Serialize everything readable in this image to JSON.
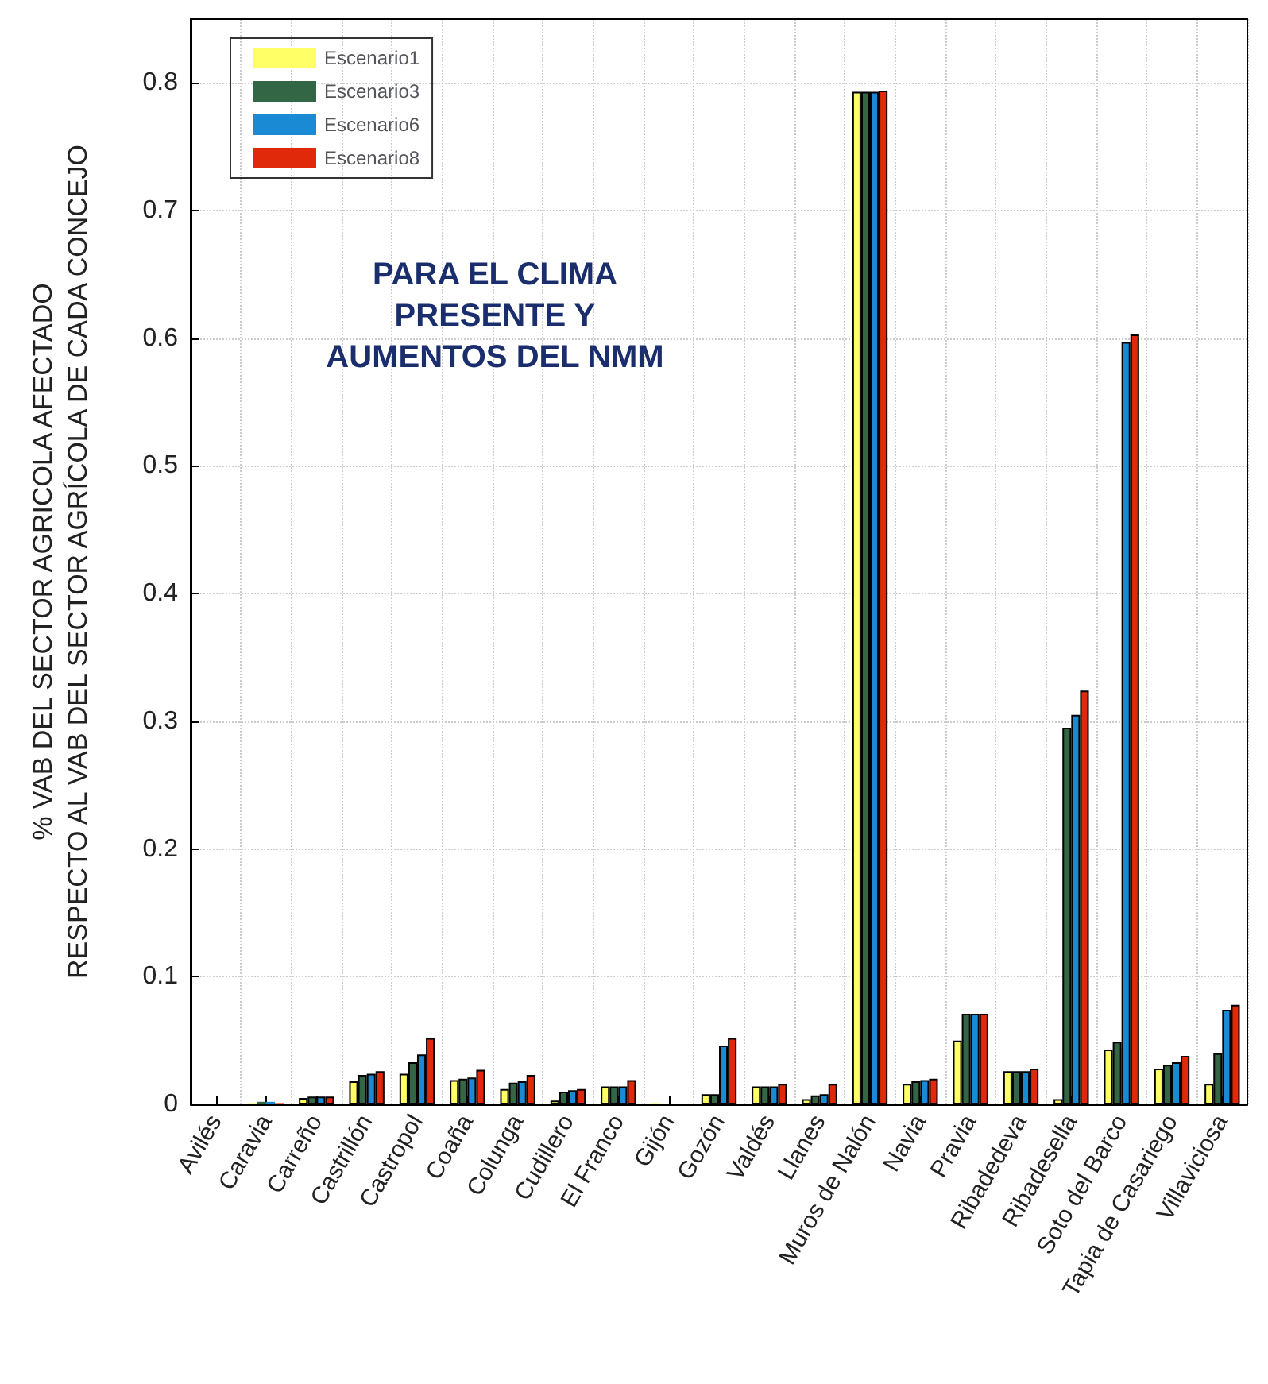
{
  "chart_data": {
    "type": "bar",
    "ylabel": "% VAB DEL SECTOR AGRICOLA AFECTADO\nRESPECTO AL VAB DEL SECTOR AGRÍCOLA DE CADA CONCEJO",
    "annotations": [
      "PARA EL CLIMA\nPRESENTE Y\nAUMENTOS DEL NMM"
    ],
    "categories": [
      "Avilés",
      "Caravia",
      "Carreño",
      "Castrillón",
      "Castropol",
      "Coaña",
      "Colunga",
      "Cudillero",
      "El Franco",
      "Gijón",
      "Gozón",
      "Valdés",
      "Llanes",
      "Muros de Nalón",
      "Navia",
      "Pravia",
      "Ribadedeva",
      "Ribadesella",
      "Soto del Barco",
      "Tapia de Casariego",
      "Villaviciosa"
    ],
    "series": [
      {
        "name": "Escenario1",
        "color": "#ffff66",
        "values": [
          0,
          0.001,
          0.005,
          0.018,
          0.024,
          0.019,
          0.012,
          0.003,
          0.014,
          0.001,
          0.008,
          0.014,
          0.004,
          0.793,
          0.016,
          0.05,
          0.026,
          0.004,
          0.043,
          0.028,
          0.016
        ]
      },
      {
        "name": "Escenario3",
        "color": "#336644",
        "values": [
          0,
          0.002,
          0.006,
          0.023,
          0.033,
          0.02,
          0.017,
          0.01,
          0.014,
          0,
          0.008,
          0.014,
          0.007,
          0.793,
          0.018,
          0.071,
          0.026,
          0.295,
          0.049,
          0.031,
          0.04
        ]
      },
      {
        "name": "Escenario6",
        "color": "#1a8ad4",
        "values": [
          0,
          0.002,
          0.006,
          0.024,
          0.039,
          0.021,
          0.018,
          0.011,
          0.014,
          0,
          0.046,
          0.014,
          0.008,
          0.793,
          0.019,
          0.071,
          0.026,
          0.305,
          0.597,
          0.033,
          0.074
        ]
      },
      {
        "name": "Escenario8",
        "color": "#e0280a",
        "values": [
          0,
          0.001,
          0.006,
          0.026,
          0.052,
          0.027,
          0.023,
          0.012,
          0.019,
          0,
          0.052,
          0.016,
          0.016,
          0.794,
          0.02,
          0.071,
          0.028,
          0.324,
          0.603,
          0.038,
          0.078
        ]
      }
    ],
    "ylim": [
      0,
      0.85
    ],
    "yticks": [
      0,
      0.1,
      0.2,
      0.3,
      0.4,
      0.5,
      0.6,
      0.7,
      0.8
    ],
    "grid": true,
    "legend": "top left"
  }
}
